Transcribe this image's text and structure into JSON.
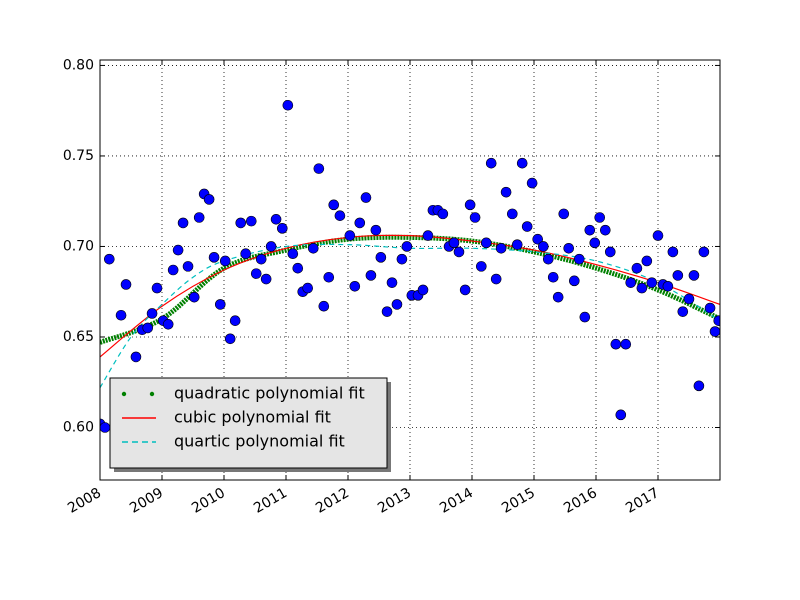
{
  "chart_data": {
    "type": "scatter",
    "xlim": [
      2008,
      2018
    ],
    "xticks": [
      2008,
      2009,
      2010,
      2011,
      2012,
      2013,
      2014,
      2015,
      2016,
      2017
    ],
    "ylim": [
      0.571,
      0.803
    ],
    "yticks": [
      {
        "value": 0.6,
        "label": "0.60"
      },
      0.65,
      {
        "value": 0.7,
        "label": "0.70"
      },
      0.75,
      {
        "value": 0.8,
        "label": "0.80"
      }
    ],
    "grid": true,
    "legend": "lower left",
    "series": [
      {
        "type": "scatter",
        "color": "#0000ff",
        "x": [
          2008.0,
          2008.08,
          2008.15,
          2008.34,
          2008.42,
          2008.58,
          2008.68,
          2008.77,
          2008.84,
          2008.92,
          2009.02,
          2009.1,
          2009.18,
          2009.26,
          2009.34,
          2009.42,
          2009.52,
          2009.6,
          2009.68,
          2009.76,
          2009.84,
          2009.94,
          2010.02,
          2010.1,
          2010.18,
          2010.27,
          2010.35,
          2010.44,
          2010.52,
          2010.6,
          2010.68,
          2010.76,
          2010.84,
          2010.94,
          2011.03,
          2011.11,
          2011.19,
          2011.27,
          2011.35,
          2011.44,
          2011.53,
          2011.61,
          2011.69,
          2011.77,
          2011.87,
          2012.03,
          2012.11,
          2012.19,
          2012.29,
          2012.37,
          2012.45,
          2012.53,
          2012.63,
          2012.71,
          2012.79,
          2012.87,
          2012.95,
          2013.03,
          2013.13,
          2013.21,
          2013.29,
          2013.37,
          2013.45,
          2013.53,
          2013.63,
          2013.71,
          2013.79,
          2013.89,
          2013.97,
          2014.05,
          2014.15,
          2014.23,
          2014.31,
          2014.39,
          2014.47,
          2014.55,
          2014.65,
          2014.73,
          2014.81,
          2014.89,
          2014.97,
          2015.06,
          2015.15,
          2015.23,
          2015.31,
          2015.39,
          2015.48,
          2015.56,
          2015.65,
          2015.73,
          2015.82,
          2015.9,
          2015.98,
          2016.06,
          2016.15,
          2016.23,
          2016.32,
          2016.4,
          2016.48,
          2016.56,
          2016.66,
          2016.74,
          2016.82,
          2016.9,
          2017.0,
          2017.08,
          2017.16,
          2017.24,
          2017.32,
          2017.4,
          2017.5,
          2017.58,
          2017.66,
          2017.74,
          2017.84,
          2017.92,
          2017.98
        ],
        "values": [
          0.602,
          0.6,
          0.693,
          0.662,
          0.679,
          0.639,
          0.654,
          0.655,
          0.663,
          0.677,
          0.659,
          0.657,
          0.687,
          0.698,
          0.713,
          0.689,
          0.672,
          0.716,
          0.729,
          0.726,
          0.694,
          0.668,
          0.692,
          0.649,
          0.659,
          0.713,
          0.696,
          0.714,
          0.685,
          0.693,
          0.682,
          0.7,
          0.715,
          0.71,
          0.778,
          0.696,
          0.688,
          0.675,
          0.677,
          0.699,
          0.743,
          0.667,
          0.683,
          0.723,
          0.717,
          0.706,
          0.678,
          0.713,
          0.727,
          0.684,
          0.709,
          0.694,
          0.664,
          0.68,
          0.668,
          0.693,
          0.7,
          0.673,
          0.673,
          0.676,
          0.706,
          0.72,
          0.72,
          0.718,
          0.7,
          0.702,
          0.697,
          0.676,
          0.723,
          0.716,
          0.689,
          0.702,
          0.746,
          0.682,
          0.699,
          0.73,
          0.718,
          0.701,
          0.746,
          0.711,
          0.735,
          0.704,
          0.7,
          0.693,
          0.683,
          0.672,
          0.718,
          0.699,
          0.681,
          0.693,
          0.661,
          0.709,
          0.702,
          0.716,
          0.709,
          0.697,
          0.646,
          0.607,
          0.646,
          0.68,
          0.688,
          0.677,
          0.692,
          0.68,
          0.706,
          0.679,
          0.678,
          0.697,
          0.684,
          0.664,
          0.671,
          0.684,
          0.623,
          0.697,
          0.666,
          0.653,
          0.659
        ]
      },
      {
        "type": "dots",
        "name": "quadratic polynomial fit",
        "color": "#008000",
        "x": [
          2008,
          2009,
          2010,
          2011,
          2012,
          2013,
          2014,
          2015,
          2016,
          2017,
          2018
        ],
        "values": [
          0.647,
          0.66,
          0.688,
          0.698,
          0.704,
          0.705,
          0.703,
          0.697,
          0.688,
          0.676,
          0.66
        ]
      },
      {
        "type": "line",
        "name": "cubic polynomial fit",
        "color": "#ff0000",
        "x": [
          2008,
          2009,
          2010,
          2011,
          2012,
          2013,
          2014,
          2015,
          2016,
          2017,
          2018
        ],
        "values": [
          0.639,
          0.667,
          0.687,
          0.699,
          0.705,
          0.706,
          0.703,
          0.698,
          0.69,
          0.68,
          0.668
        ]
      },
      {
        "type": "dashed",
        "name": "quartic polynomial fit",
        "color": "#00bfbf",
        "x": [
          2008,
          2008.5,
          2009,
          2009.5,
          2010,
          2011,
          2012,
          2013,
          2014,
          2015,
          2016,
          2017,
          2018
        ],
        "values": [
          0.622,
          0.65,
          0.668,
          0.683,
          0.692,
          0.7,
          0.701,
          0.699,
          0.699,
          0.697,
          0.692,
          0.68,
          0.659
        ]
      }
    ]
  }
}
